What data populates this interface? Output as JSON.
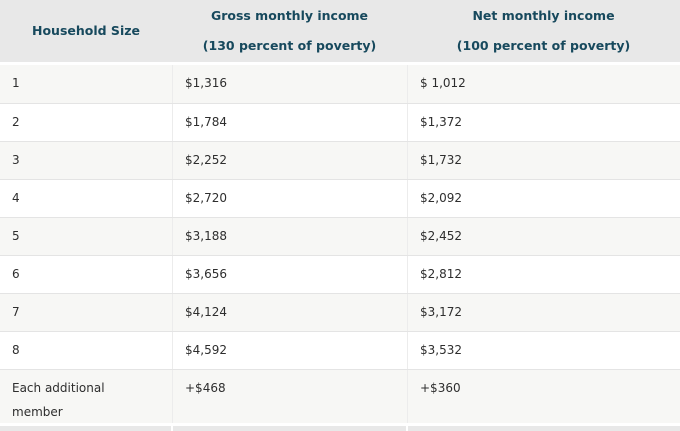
{
  "table": {
    "header": {
      "col1": {
        "line1": "Household Size",
        "line2": ""
      },
      "col2": {
        "line1": "Gross monthly income",
        "line2": "(130 percent of poverty)"
      },
      "col3": {
        "line1": "Net monthly income",
        "line2": "(100 percent of poverty)"
      }
    },
    "rows": [
      {
        "household_size": "1",
        "gross": "$1,316",
        "net": "$ 1,012"
      },
      {
        "household_size": "2",
        "gross": "$1,784",
        "net": "$1,372"
      },
      {
        "household_size": "3",
        "gross": "$2,252",
        "net": "$1,732"
      },
      {
        "household_size": "4",
        "gross": "$2,720",
        "net": "$2,092"
      },
      {
        "household_size": "5",
        "gross": "$3,188",
        "net": "$2,452"
      },
      {
        "household_size": "6",
        "gross": "$3,656",
        "net": "$2,812"
      },
      {
        "household_size": "7",
        "gross": "$4,124",
        "net": "$3,172"
      },
      {
        "household_size": "8",
        "gross": "$4,592",
        "net": "$3,532"
      },
      {
        "household_size": "Each additional member",
        "gross": "+$468",
        "net": "+$360"
      }
    ]
  },
  "colors": {
    "header_background": "#e8e8e8",
    "header_text": "#17495d",
    "body_text": "#2e2e2e",
    "zebra_row": "#f7f7f5",
    "row_border": "#e4e4e4",
    "column_border": "#ececec"
  }
}
